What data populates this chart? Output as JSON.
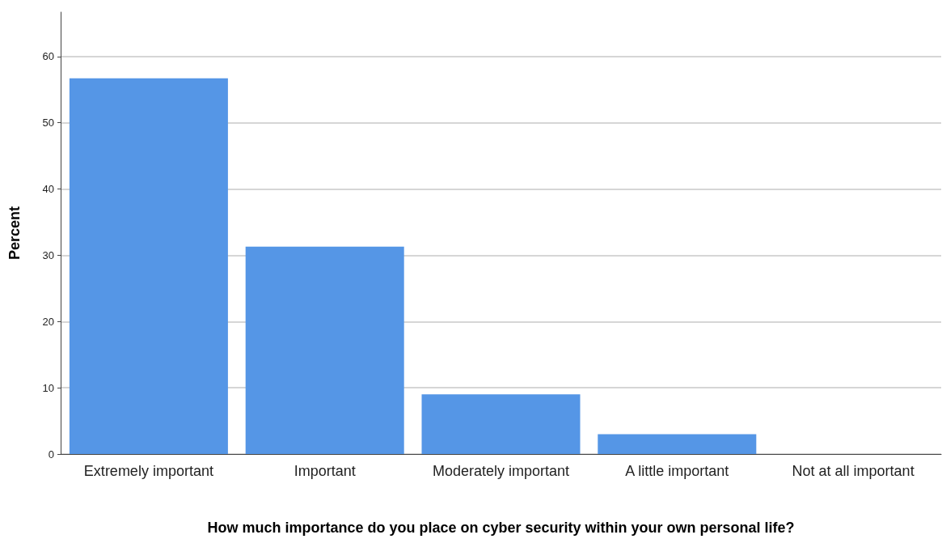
{
  "chart_data": {
    "type": "bar",
    "xlabel": "How much importance do you place on cyber security within your own personal life?",
    "ylabel": "Percent",
    "categories": [
      "Extremely important",
      "Important",
      "Moderately important",
      "A little important",
      "Not at all important"
    ],
    "values": [
      56.7,
      31.3,
      9.0,
      3.0,
      0
    ],
    "color": "#5596e6",
    "ylim": [
      0,
      66.7
    ],
    "yticks": [
      0,
      10,
      20,
      30,
      40,
      50,
      60
    ],
    "grid": "y"
  }
}
